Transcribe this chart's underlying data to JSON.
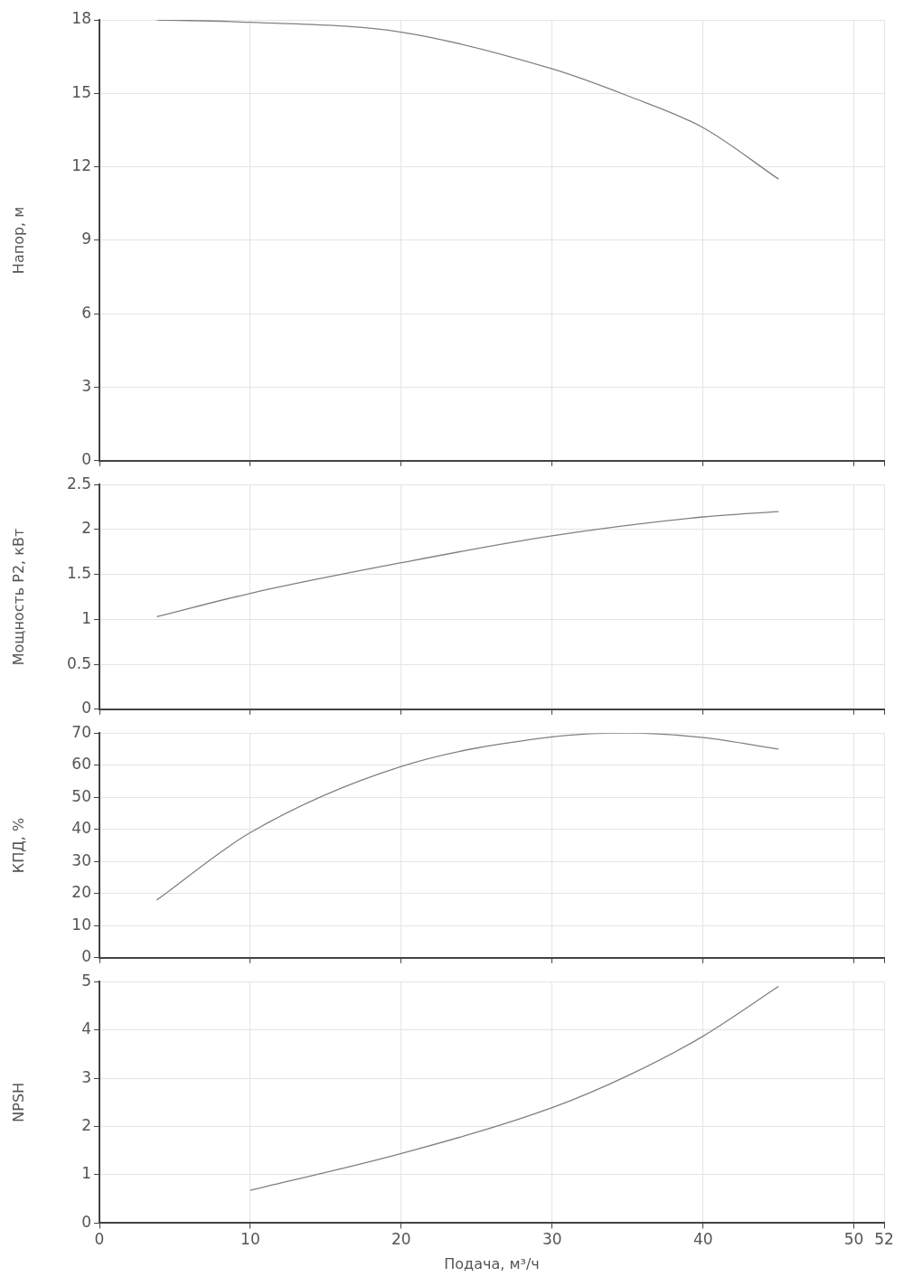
{
  "chart_data": [
    {
      "type": "line",
      "ylabel": "Напор, м",
      "x": [
        3.8,
        10,
        20,
        30,
        35,
        40,
        45
      ],
      "series": [
        {
          "color": "#808080",
          "values": [
            18,
            17.9,
            17.5,
            16,
            14.9,
            13.6,
            11.5
          ]
        }
      ],
      "xlim": [
        0,
        52
      ],
      "xticks": [
        0,
        10,
        20,
        30,
        40,
        50,
        52
      ],
      "ylim": [
        0,
        18
      ],
      "yticks": [
        0,
        3,
        6,
        9,
        12,
        15,
        18
      ],
      "grid": true,
      "marker": "none",
      "tick_labels": "y"
    },
    {
      "type": "line",
      "ylabel": "Мощность P2, кВт",
      "x": [
        3.8,
        10,
        20,
        30,
        40,
        45
      ],
      "series": [
        {
          "color": "#808080",
          "values": [
            1.03,
            1.29,
            1.63,
            1.93,
            2.14,
            2.2
          ]
        }
      ],
      "xlim": [
        0,
        52
      ],
      "xticks": [
        0,
        10,
        20,
        30,
        40,
        50,
        52
      ],
      "ylim": [
        0,
        2.5
      ],
      "yticks": [
        0,
        0.5,
        1,
        1.5,
        2,
        2.5
      ],
      "grid": true,
      "marker": "none",
      "tick_labels": "y"
    },
    {
      "type": "line",
      "ylabel": "КПД, %",
      "x": [
        3.8,
        10,
        20,
        30,
        35,
        40,
        45
      ],
      "series": [
        {
          "color": "#808080",
          "values": [
            18,
            39,
            59.6,
            68.8,
            70,
            68.6,
            65
          ]
        }
      ],
      "xlim": [
        0,
        52
      ],
      "xticks": [
        0,
        10,
        20,
        30,
        40,
        50,
        52
      ],
      "ylim": [
        0,
        70
      ],
      "yticks": [
        0,
        10,
        20,
        30,
        40,
        50,
        60,
        70
      ],
      "grid": true,
      "marker": "none",
      "tick_labels": "y"
    },
    {
      "type": "line",
      "ylabel": "NPSH",
      "xlabel": "Подача, м³/ч",
      "x": [
        10,
        20,
        30,
        35,
        40,
        45
      ],
      "series": [
        {
          "color": "#808080",
          "values": [
            0.68,
            1.44,
            2.39,
            3.05,
            3.87,
            4.9
          ]
        }
      ],
      "xlim": [
        0,
        52
      ],
      "xticks": [
        0,
        10,
        20,
        30,
        40,
        50,
        52
      ],
      "ylim": [
        0,
        5
      ],
      "yticks": [
        0,
        1,
        2,
        3,
        4,
        5
      ],
      "grid": true,
      "marker": "none"
    }
  ]
}
